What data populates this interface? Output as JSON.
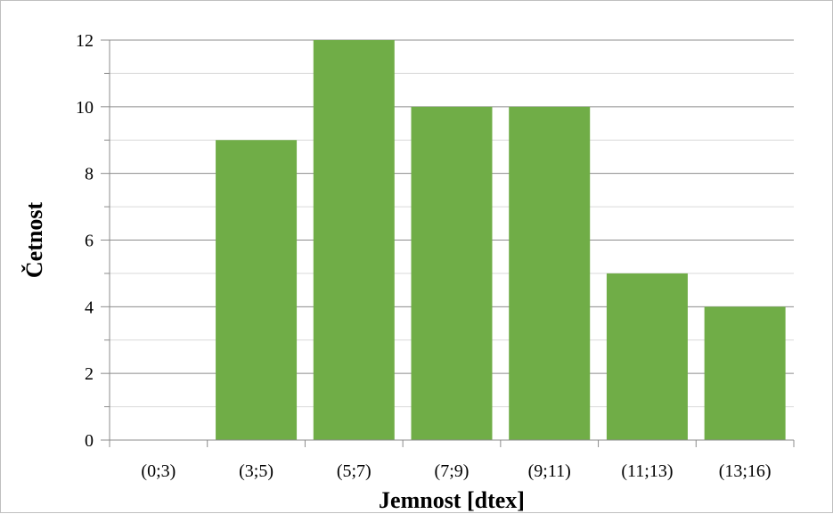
{
  "chart_data": {
    "type": "bar",
    "categories": [
      "(0;3)",
      "(3;5)",
      "(5;7)",
      "(7;9)",
      "(9;11)",
      "(11;13)",
      "(13;16)"
    ],
    "values": [
      0,
      9,
      12,
      10,
      10,
      5,
      4
    ],
    "xlabel": "Jemnost [dtex]",
    "ylabel": "Četnost",
    "ylim": [
      0,
      12
    ],
    "yticks": [
      0,
      2,
      4,
      6,
      8,
      10,
      12
    ],
    "minor_step": 1,
    "grid": true,
    "legend": "none",
    "bar_color": "#70ad47",
    "grid_color": "#8c8c8c",
    "minor_grid_color": "#d9d9d9"
  }
}
